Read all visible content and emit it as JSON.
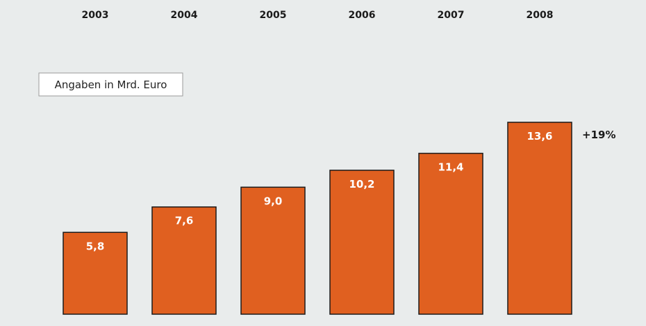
{
  "chart_data": {
    "type": "bar",
    "categories": [
      "2003",
      "2004",
      "2005",
      "2006",
      "2007",
      "2008"
    ],
    "values": [
      5.8,
      7.6,
      9.0,
      10.2,
      11.4,
      13.6
    ],
    "value_labels": [
      "5,8",
      "7,6",
      "9,0",
      "10,2",
      "11,4",
      "13,6"
    ],
    "unit_note": "Angaben in Mrd. Euro",
    "annotation": "+19%",
    "bar_color": "#e06020",
    "bar_edge_color": "#1a1a1a",
    "background_color": "#e9ecec",
    "category_axis_position": "top",
    "grid": false,
    "legend": false
  }
}
